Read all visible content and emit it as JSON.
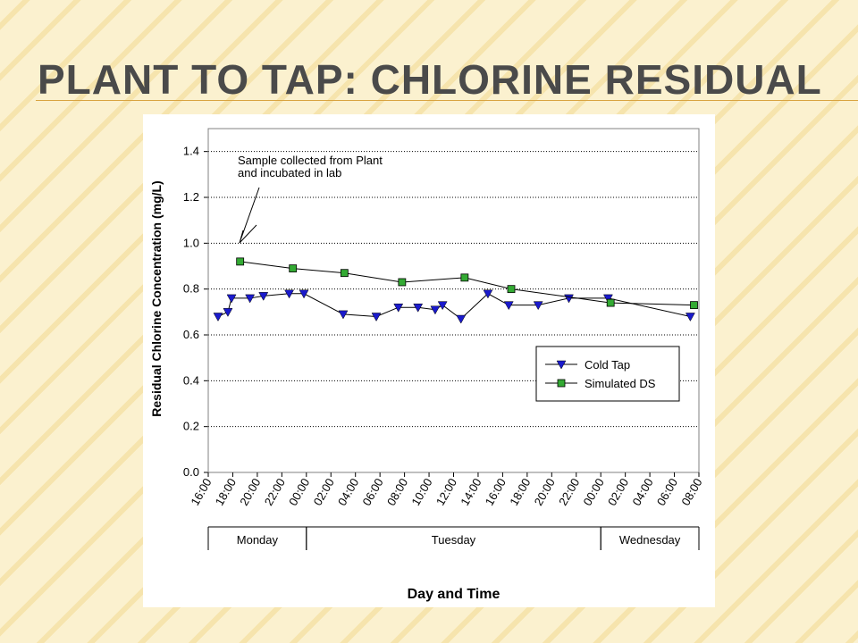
{
  "slide_title": "PLANT TO TAP: CHLORINE RESIDUAL",
  "chart_data": {
    "type": "line",
    "x_label": "Day and Time",
    "y_label": "Residual Chlorine Concentration (mg/L)",
    "annotation": [
      "Sample collected from Plant",
      "and incubated in lab"
    ],
    "xlim": [
      16,
      56
    ],
    "xticks": [
      {
        "value": 16,
        "label": "16:00"
      },
      {
        "value": 18,
        "label": "18:00"
      },
      {
        "value": 20,
        "label": "20:00"
      },
      {
        "value": 22,
        "label": "22:00"
      },
      {
        "value": 24,
        "label": "00:00"
      },
      {
        "value": 26,
        "label": "02:00"
      },
      {
        "value": 28,
        "label": "04:00"
      },
      {
        "value": 30,
        "label": "06:00"
      },
      {
        "value": 32,
        "label": "08:00"
      },
      {
        "value": 34,
        "label": "10:00"
      },
      {
        "value": 36,
        "label": "12:00"
      },
      {
        "value": 38,
        "label": "14:00"
      },
      {
        "value": 40,
        "label": "16:00"
      },
      {
        "value": 42,
        "label": "18:00"
      },
      {
        "value": 44,
        "label": "20:00"
      },
      {
        "value": 46,
        "label": "22:00"
      },
      {
        "value": 48,
        "label": "00:00"
      },
      {
        "value": 50,
        "label": "02:00"
      },
      {
        "value": 52,
        "label": "04:00"
      },
      {
        "value": 54,
        "label": "06:00"
      },
      {
        "value": 56,
        "label": "08:00"
      }
    ],
    "days": [
      {
        "label": "Monday",
        "start": 16,
        "end": 24
      },
      {
        "label": "Tuesday",
        "start": 24,
        "end": 48
      },
      {
        "label": "Wednesday",
        "start": 48,
        "end": 56
      }
    ],
    "ylim": [
      0,
      1.5
    ],
    "yticks": [
      {
        "value": 0,
        "label": "0.0"
      },
      0.2,
      0.4,
      0.6,
      0.8,
      {
        "value": 1,
        "label": "1.0"
      },
      1.2,
      1.4
    ],
    "grid": true,
    "legend": "right",
    "series": [
      {
        "name": "Cold Tap",
        "color": "#1a1acc",
        "marker": "triangle-down",
        "x": [
          16.8,
          17.6,
          17.9,
          19.4,
          20.5,
          22.6,
          23.8,
          27.0,
          29.7,
          31.5,
          33.1,
          34.5,
          35.1,
          36.6,
          38.8,
          40.5,
          42.9,
          45.4,
          48.6,
          55.3
        ],
        "values": [
          0.68,
          0.7,
          0.76,
          0.76,
          0.77,
          0.78,
          0.78,
          0.69,
          0.68,
          0.72,
          0.72,
          0.71,
          0.73,
          0.67,
          0.78,
          0.73,
          0.73,
          0.76,
          0.76,
          0.68
        ]
      },
      {
        "name": "Simulated DS",
        "color": "#33aa33",
        "marker": "square",
        "x": [
          18.6,
          22.9,
          27.1,
          31.8,
          36.9,
          40.7,
          48.8,
          55.6
        ],
        "values": [
          0.92,
          0.89,
          0.87,
          0.83,
          0.85,
          0.8,
          0.74,
          0.73
        ]
      }
    ]
  }
}
